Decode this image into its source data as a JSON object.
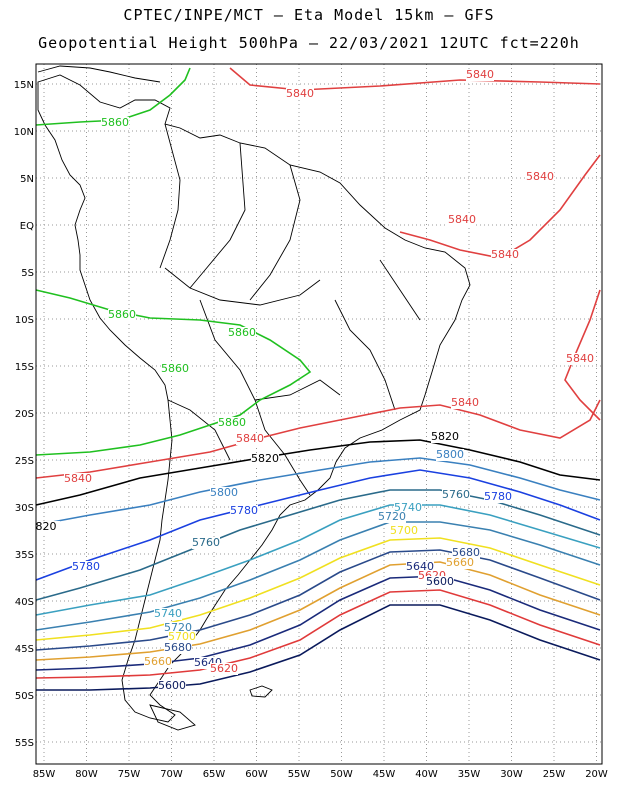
{
  "title_line1": "CPTEC/INPE/MCT —  Eta Model 15km — GFS",
  "title_line2": "Geopotential Height 500hPa — 22/03/2021 12UTC fct=220h",
  "lat_ticks": [
    "15N",
    "10N",
    "5N",
    "EQ",
    "5S",
    "10S",
    "15S",
    "20S",
    "25S",
    "30S",
    "35S",
    "40S",
    "45S",
    "50S",
    "55S"
  ],
  "lon_ticks": [
    "85W",
    "80W",
    "75W",
    "70W",
    "65W",
    "60W",
    "55W",
    "50W",
    "45W",
    "40W",
    "35W",
    "30W",
    "25W",
    "20W"
  ],
  "contour_colors": {
    "5600": "#0a1a5c",
    "5620": "#e03a3a",
    "5640": "#1a2a7a",
    "5660": "#e0a030",
    "5680": "#2a4a8a",
    "5700": "#f0e020",
    "5720": "#3a80b0",
    "5740": "#3aa0c0",
    "5760": "#2a6a8a",
    "5780": "#1a40e0",
    "5800": "#3a80c0",
    "5820": "#000000",
    "5840": "#e04040",
    "5860": "#20c020"
  },
  "contour_labels": [
    {
      "text": "5840",
      "color": "#e04040"
    },
    {
      "text": "5840",
      "color": "#e04040"
    },
    {
      "text": "5840",
      "color": "#e04040"
    },
    {
      "text": "5840",
      "color": "#e04040"
    },
    {
      "text": "5840",
      "color": "#e04040"
    },
    {
      "text": "5840",
      "color": "#e04040"
    },
    {
      "text": "5840",
      "color": "#e04040"
    },
    {
      "text": "5840",
      "color": "#e04040"
    },
    {
      "text": "5840",
      "color": "#e04040"
    },
    {
      "text": "5860",
      "color": "#20c020"
    },
    {
      "text": "5860",
      "color": "#20c020"
    },
    {
      "text": "5860",
      "color": "#20c020"
    },
    {
      "text": "5860",
      "color": "#20c020"
    },
    {
      "text": "5860",
      "color": "#20c020"
    },
    {
      "text": "5820",
      "color": "#000000"
    },
    {
      "text": "5820",
      "color": "#000000"
    },
    {
      "text": "820",
      "color": "#000000"
    },
    {
      "text": "5800",
      "color": "#3a80c0"
    },
    {
      "text": "5800",
      "color": "#3a80c0"
    },
    {
      "text": "5780",
      "color": "#1a40e0"
    },
    {
      "text": "5780",
      "color": "#1a40e0"
    },
    {
      "text": "5780",
      "color": "#1a40e0"
    },
    {
      "text": "5760",
      "color": "#2a6a8a"
    },
    {
      "text": "5760",
      "color": "#2a6a8a"
    },
    {
      "text": "5740",
      "color": "#3aa0c0"
    },
    {
      "text": "5740",
      "color": "#3aa0c0"
    },
    {
      "text": "5720",
      "color": "#3a80b0"
    },
    {
      "text": "5720",
      "color": "#3a80b0"
    },
    {
      "text": "5700",
      "color": "#f0e020"
    },
    {
      "text": "5700",
      "color": "#f0e020"
    },
    {
      "text": "5680",
      "color": "#2a4a8a"
    },
    {
      "text": "5680",
      "color": "#2a4a8a"
    },
    {
      "text": "5660",
      "color": "#e0a030"
    },
    {
      "text": "5660",
      "color": "#e0a030"
    },
    {
      "text": "5640",
      "color": "#1a2a7a"
    },
    {
      "text": "5640",
      "color": "#1a2a7a"
    },
    {
      "text": "5620",
      "color": "#e03a3a"
    },
    {
      "text": "5620",
      "color": "#e03a3a"
    },
    {
      "text": "5600",
      "color": "#0a1a5c"
    },
    {
      "text": "5600",
      "color": "#0a1a5c"
    }
  ]
}
